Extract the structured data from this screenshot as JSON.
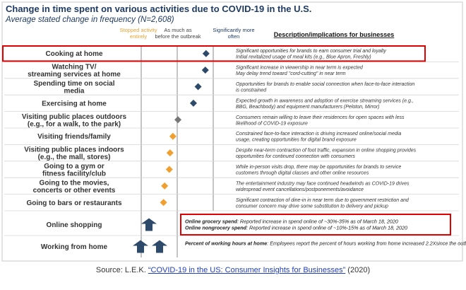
{
  "chart_data": {
    "type": "scatter",
    "title": "Change in time spent on various activities due to COVID-19 in the U.S.",
    "subtitle": "Average stated change in frequency (N=2,608)",
    "scale_labels": [
      "Stopped activity entirely",
      "As much as before the outbreak",
      "Significantly more often"
    ],
    "description_header": "Description/implications for businesses",
    "colors": {
      "more": "#2e4a6b",
      "less": "#f0a030",
      "neutral": "#777777",
      "highlight": "#e00000",
      "title": "#1f3b63"
    },
    "activities": [
      {
        "label": "Cooking at home",
        "value": 0.8,
        "desc": [
          "Significant opportunities for brands to earn consumer trial and loyalty",
          "Initial revitalized usage of meal kits (e.g., Blue Apron, Freshly)"
        ],
        "highlight": true
      },
      {
        "label": "Watching TV/ streaming services at home",
        "value": 0.78,
        "desc": [
          "Significant increase in viewership in near term is expected",
          "May delay trend toward \"cord-cutting\" in near term"
        ]
      },
      {
        "label": "Spending time on social media",
        "value": 0.58,
        "desc": [
          "Opportunities for brands to enable social connection when face-to-face interaction",
          "is constrained"
        ]
      },
      {
        "label": "Exercising at home",
        "value": 0.45,
        "desc": [
          "Expected growth in awareness and adoption of exercise streaming services (e.g.,",
          "BBG, Beachbody) and equipment manufacturers (Peloton, Mirror)"
        ]
      },
      {
        "label": "Visiting public places outdoors (e.g., for a walk, to the park)",
        "value": 0.02,
        "desc": [
          "Consumers remain willing to leave their residences for open spaces with less",
          "likelihood of COVID-19 exposure"
        ]
      },
      {
        "label": "Visiting friends/family",
        "value": -0.12,
        "desc": [
          "Constrained face-to-face interaction is driving increased online/social media",
          "usage, creating opportunities for digital brand exposure"
        ]
      },
      {
        "label": "Visiting public places indoors (e.g., the mall, stores)",
        "value": -0.2,
        "desc": [
          "Despite near-term contraction of foot traffic, expansion in online shopping provides",
          "opportunities for continued connection with consumers"
        ]
      },
      {
        "label": "Going to a gym or fitness facility/club",
        "value": -0.22,
        "desc": [
          "While in-person visits drop, there may be opportunities for brands to service",
          "customers through digital classes and other online resources"
        ]
      },
      {
        "label": "Going to the movies, concerts or other events",
        "value": -0.35,
        "desc": [
          "The entertainment industry may face continued headwinds as COVID-19 drives",
          "widespread event cancellations/postponements/avoidance"
        ]
      },
      {
        "label": "Going to bars or restaurants",
        "value": -0.38,
        "desc": [
          "Significant contraction of dine-in in near term due to government restriction and",
          "consumer concern may drive some substitution to delivery and pickup"
        ]
      }
    ],
    "bottom_rows": [
      {
        "label": "Online shopping",
        "arrows": 1,
        "highlight": true,
        "desc": [
          {
            "bold": "Online grocery spend",
            "text": ": Reported increase in spend online of ~30%-35% as of March 18, 2020"
          },
          {
            "bold": "Online nongrocery spend",
            "text": ": Reported increase in spend online of ~10%-15% as of March 18, 2020"
          }
        ]
      },
      {
        "label": "Working from home",
        "arrows": 2,
        "desc": [
          {
            "bold": "Percent of working hours at home",
            "text": ": Employees report the percent of hours working from home increased 2.2X"
          },
          {
            "bold": "",
            "text": "since the outbreak"
          }
        ]
      }
    ],
    "x_domain": [
      -1,
      1
    ]
  },
  "source": {
    "prefix": "Source: L.E.K. ",
    "link": "“COVID-19 in the US: Consumer Insights for Businesses”",
    "suffix": " (2020)"
  }
}
